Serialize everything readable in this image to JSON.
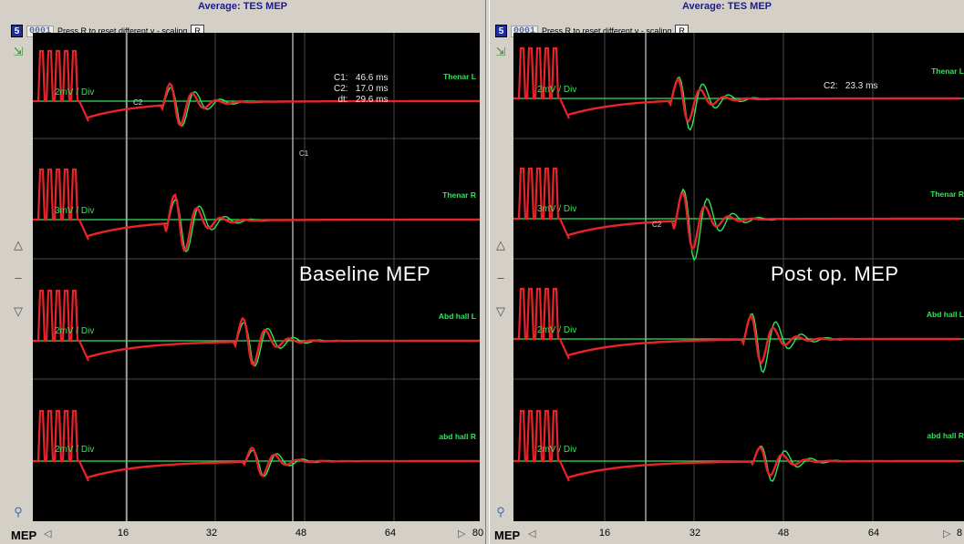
{
  "colors": {
    "baseline_trace": "#2ee55a",
    "current_trace": "#e8232a",
    "grid": "#4a4a4a",
    "cursor": "#d0d0d0",
    "title": "#1a1a8e"
  },
  "toolbar": {
    "channel_number": "5",
    "frame_counter": "0001",
    "hint": "Press R to reset different y - scaling",
    "reset_button": "R"
  },
  "sidebar_icons": [
    "zoom-icon",
    "triangle-up-icon",
    "dash-icon",
    "triangle-down-icon",
    "magnifier-icon"
  ],
  "mode_label": "MEP",
  "panels": [
    {
      "title": "Average: TES MEP",
      "overlay_label": "Baseline MEP",
      "channels": [
        "Thenar L",
        "Thenar R",
        "Abd hall L",
        "abd hall R"
      ],
      "scales": [
        "2mV / Div",
        "3mV / Div",
        "2mV / Div",
        "2mV / Div"
      ],
      "cursor_labels": [
        "C2",
        "C1"
      ],
      "readout": "C1:   46.6 ms\nC2:   17.0 ms\ndt:   29.6 ms",
      "x_ticks": [
        "16",
        "32",
        "48",
        "64",
        "80"
      ]
    },
    {
      "title": "Average: TES MEP",
      "overlay_label": "Post op. MEP",
      "channels": [
        "Thenar L",
        "Thenar R",
        "Abd hall L",
        "abd hall R"
      ],
      "scales": [
        "2mV / Div",
        "3mV / Div",
        "2mV / Div",
        "2mV / Div"
      ],
      "cursor_labels": [
        "C2"
      ],
      "readout": "C2:   23.3 ms",
      "x_ticks": [
        "16",
        "32",
        "48",
        "64",
        "8"
      ]
    }
  ]
}
